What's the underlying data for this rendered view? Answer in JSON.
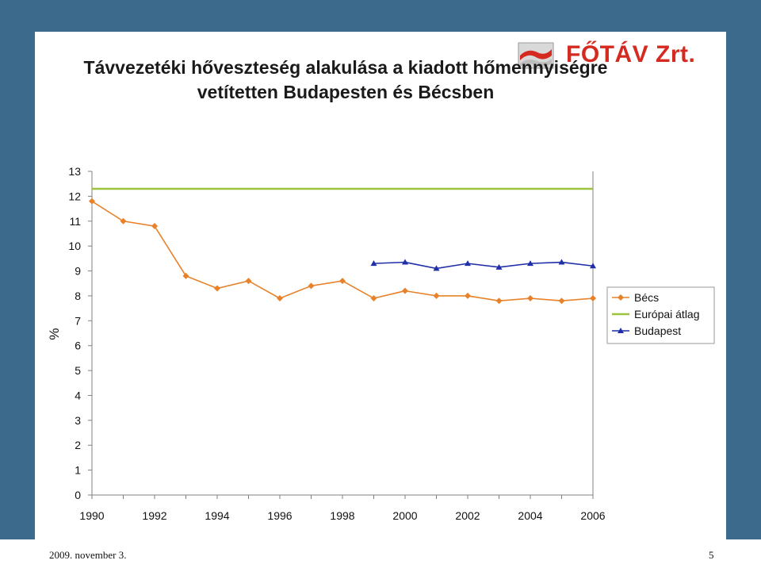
{
  "logo": {
    "text": "FŐTÁV Zrt."
  },
  "title": {
    "line1": "Távvezetéki hőveszteség alakulása a kiadott hőmennyiségre",
    "line2": "vetítetten Budapesten és Bécsben"
  },
  "footer": {
    "date": "2009. november 3.",
    "page": "5"
  },
  "chart_data": {
    "type": "line",
    "title": "Távvezetéki hőveszteség alakulása a kiadott hőmennyiségre vetítetten Budapesten és Bécsben",
    "xlabel": "",
    "ylabel": "%",
    "xlim": [
      1990,
      2006
    ],
    "ylim": [
      0,
      13
    ],
    "x_ticks": [
      1990,
      1992,
      1994,
      1996,
      1998,
      2000,
      2002,
      2004,
      2006
    ],
    "y_ticks": [
      0,
      1,
      2,
      3,
      4,
      5,
      6,
      7,
      8,
      9,
      10,
      11,
      12,
      13
    ],
    "legend_position": "right",
    "grid": false,
    "series": [
      {
        "name": "Bécs",
        "color": "#e8822a",
        "marker": "diamond",
        "x": [
          1990,
          1991,
          1992,
          1993,
          1994,
          1995,
          1996,
          1997,
          1998,
          1999,
          2000,
          2001,
          2002,
          2003,
          2004,
          2005,
          2006
        ],
        "values": [
          11.8,
          11.0,
          10.8,
          8.8,
          8.3,
          8.6,
          7.9,
          8.4,
          8.6,
          7.9,
          8.2,
          8.0,
          8.0,
          7.8,
          7.9,
          7.8,
          7.9
        ]
      },
      {
        "name": "Európai átlag",
        "color": "#9bc43b",
        "marker": "none",
        "x": [
          1990,
          2006
        ],
        "values": [
          12.3,
          12.3
        ]
      },
      {
        "name": "Budapest",
        "color": "#1f2fa8",
        "marker": "triangle",
        "x": [
          1999,
          2000,
          2001,
          2002,
          2003,
          2004,
          2005,
          2006
        ],
        "values": [
          9.3,
          9.35,
          9.1,
          9.3,
          9.15,
          9.3,
          9.35,
          9.2
        ]
      }
    ]
  }
}
